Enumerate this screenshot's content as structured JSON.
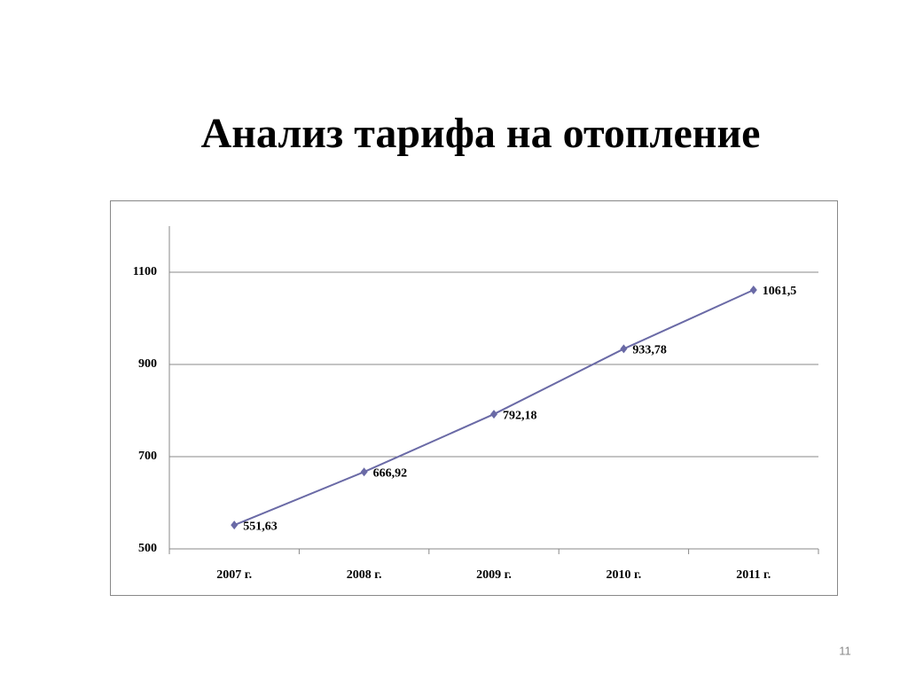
{
  "title": "Анализ тарифа на отопление",
  "page_number": 11,
  "chart_data": {
    "type": "line",
    "categories": [
      "2007 г.",
      "2008 г.",
      "2009 г.",
      "2010 г.",
      "2011 г."
    ],
    "values": [
      551.63,
      666.92,
      792.18,
      933.78,
      1061.5
    ],
    "value_labels": [
      "551,63",
      "666,92",
      "792,18",
      "933,78",
      "1061,5"
    ],
    "color": "#6a6aa6",
    "ylim": [
      500,
      1200
    ],
    "yticks": [
      500,
      700,
      900,
      1100
    ],
    "grid": true
  }
}
